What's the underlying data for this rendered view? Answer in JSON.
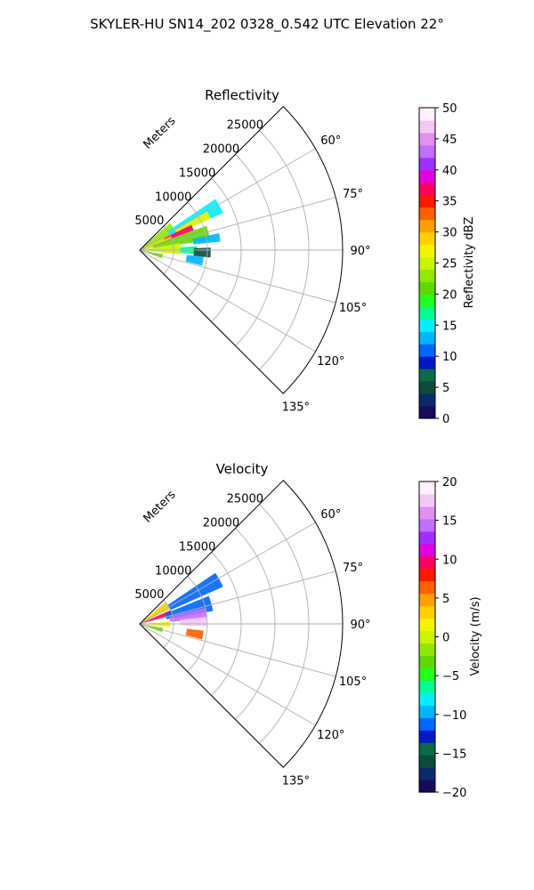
{
  "figure": {
    "title": "SKYLER-HU  SN14_202  0328_0.542 UTC Elevation 22°"
  },
  "chart_data": [
    {
      "type": "heatmap",
      "projection": "polar-sector",
      "title": "Reflectivity",
      "radial_label": "Meters",
      "radial_ticks": [
        5000,
        10000,
        15000,
        20000,
        25000
      ],
      "r_max": 30000,
      "azimuth_ticks": [
        60,
        75,
        90,
        105,
        120,
        135
      ],
      "azimuth_tick_labels": [
        "60°",
        "75°",
        "90°",
        "105°",
        "120°",
        "135°"
      ],
      "azimuth_range": [
        45,
        135
      ],
      "grid": true,
      "colorbar": {
        "label": "Reflectivity dBZ",
        "min": 0,
        "max": 50,
        "ticks": [
          0,
          5,
          10,
          15,
          20,
          25,
          30,
          35,
          40,
          45,
          50
        ],
        "tick_labels": [
          "0",
          "5",
          "10",
          "15",
          "20",
          "25",
          "30",
          "35",
          "40",
          "45",
          "50"
        ],
        "colormap": [
          "#1a0a5e",
          "#0b2a6b",
          "#0c4a3a",
          "#0a6a48",
          "#0018c8",
          "#0066ff",
          "#00b4ff",
          "#00f0ff",
          "#00ff90",
          "#20ff20",
          "#60d800",
          "#90e800",
          "#c8f400",
          "#f4f400",
          "#ffd000",
          "#ffa000",
          "#ff6000",
          "#ff1800",
          "#ff0060",
          "#e000e0",
          "#a030ff",
          "#c070ff",
          "#e090f0",
          "#f4c8f4",
          "#fff0ff"
        ]
      },
      "echo_regions": [
        {
          "az": [
            48,
            66
          ],
          "range": [
            0,
            6000
          ],
          "value": 22
        },
        {
          "az": [
            56,
            66
          ],
          "range": [
            5000,
            13500
          ],
          "value": 14
        },
        {
          "az": [
            60,
            66
          ],
          "range": [
            6000,
            11500
          ],
          "value": 27
        },
        {
          "az": [
            64,
            70
          ],
          "range": [
            4000,
            8500
          ],
          "value": 36
        },
        {
          "az": [
            66,
            76
          ],
          "range": [
            0,
            5000
          ],
          "value": 28
        },
        {
          "az": [
            70,
            82
          ],
          "range": [
            2000,
            10500
          ],
          "value": 21
        },
        {
          "az": [
            78,
            84
          ],
          "range": [
            8000,
            12000
          ],
          "value": 13
        },
        {
          "az": [
            80,
            96
          ],
          "range": [
            0,
            6000
          ],
          "value": 24
        },
        {
          "az": [
            86,
            94
          ],
          "range": [
            6000,
            8500
          ],
          "value": 16
        },
        {
          "az": [
            88,
            96
          ],
          "range": [
            8000,
            10500
          ],
          "value": 5
        },
        {
          "az": [
            96,
            104
          ],
          "range": [
            7000,
            9500
          ],
          "value": 12
        },
        {
          "az": [
            100,
            110
          ],
          "range": [
            0,
            3500
          ],
          "value": 20
        }
      ]
    },
    {
      "type": "heatmap",
      "projection": "polar-sector",
      "title": "Velocity",
      "radial_label": "Meters",
      "radial_ticks": [
        5000,
        10000,
        15000,
        20000,
        25000
      ],
      "r_max": 30000,
      "azimuth_ticks": [
        60,
        75,
        90,
        105,
        120,
        135
      ],
      "azimuth_tick_labels": [
        "60°",
        "75°",
        "90°",
        "105°",
        "120°",
        "135°"
      ],
      "azimuth_range": [
        45,
        135
      ],
      "grid": true,
      "colorbar": {
        "label": "Velocity (m/s)",
        "min": -20,
        "max": 20,
        "ticks": [
          -20,
          -15,
          -10,
          -5,
          0,
          5,
          10,
          15,
          20
        ],
        "tick_labels": [
          "−20",
          "−15",
          "−10",
          "−5",
          "0",
          "5",
          "10",
          "15",
          "20"
        ],
        "colormap": [
          "#1a0a5e",
          "#0b2a6b",
          "#0c4a3a",
          "#0a6a48",
          "#0018c8",
          "#0066ff",
          "#00b4ff",
          "#00f0ff",
          "#00ff90",
          "#20ff20",
          "#60d800",
          "#90e800",
          "#c8f400",
          "#f4f400",
          "#ffd000",
          "#ffa000",
          "#ff6000",
          "#ff1800",
          "#ff0060",
          "#e000e0",
          "#a030ff",
          "#c070ff",
          "#e090f0",
          "#f4c8f4",
          "#fff0ff"
        ]
      },
      "echo_regions": [
        {
          "az": [
            50,
            64
          ],
          "range": [
            0,
            5000
          ],
          "value": 3
        },
        {
          "az": [
            56,
            66
          ],
          "range": [
            5000,
            13500
          ],
          "value": -11
        },
        {
          "az": [
            66,
            76
          ],
          "range": [
            0,
            5000
          ],
          "value": 9
        },
        {
          "az": [
            68,
            80
          ],
          "range": [
            4000,
            11000
          ],
          "value": -12
        },
        {
          "az": [
            76,
            86
          ],
          "range": [
            4500,
            10000
          ],
          "value": 15
        },
        {
          "az": [
            84,
            92
          ],
          "range": [
            6000,
            10000
          ],
          "value": 17
        },
        {
          "az": [
            86,
            96
          ],
          "range": [
            0,
            4500
          ],
          "value": 1
        },
        {
          "az": [
            96,
            104
          ],
          "range": [
            7000,
            9500
          ],
          "value": 7
        },
        {
          "az": [
            100,
            110
          ],
          "range": [
            0,
            3500
          ],
          "value": -4
        }
      ]
    }
  ]
}
